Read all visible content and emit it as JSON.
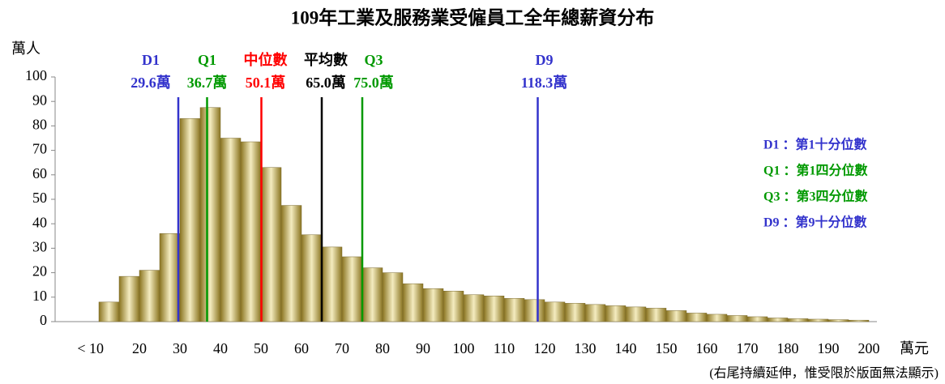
{
  "chart_data": {
    "type": "histogram",
    "title": "109年工業及服務業受僱員工全年總薪資分布",
    "y_label": "萬人",
    "x_label": "萬元",
    "footnote": "(右尾持續延伸，惟受限於版面無法顯示)",
    "bins": [
      10,
      15,
      20,
      25,
      30,
      35,
      40,
      45,
      50,
      55,
      60,
      65,
      70,
      75,
      80,
      85,
      90,
      95,
      100,
      105,
      110,
      115,
      120,
      125,
      130,
      135,
      140,
      145,
      150,
      155,
      160,
      165,
      170,
      175,
      180,
      185,
      190,
      195,
      200
    ],
    "values": [
      8,
      18.5,
      21,
      36,
      83,
      87.5,
      75,
      73.5,
      63,
      47.5,
      35.5,
      30.5,
      26.5,
      22,
      20,
      15.5,
      13.5,
      12.5,
      11,
      10.5,
      9.5,
      9,
      8,
      7.5,
      7,
      6.5,
      6,
      5.5,
      4.5,
      3.5,
      3,
      2.5,
      2,
      1.5,
      1.2,
      1,
      0.8,
      0.6
    ],
    "xlim": [
      0,
      202
    ],
    "ylim": [
      0,
      100
    ],
    "xticks": [
      {
        "value": 10,
        "label": "< 10"
      },
      20,
      30,
      40,
      50,
      60,
      70,
      80,
      90,
      100,
      110,
      120,
      130,
      140,
      150,
      160,
      170,
      180,
      190,
      200
    ],
    "yticks": [
      0,
      10,
      20,
      30,
      40,
      50,
      60,
      70,
      80,
      90,
      100
    ],
    "markers": {
      "names": [
        "D1",
        "Q1",
        "中位數",
        "平均數",
        "Q3",
        "D9"
      ],
      "values": [
        29.6,
        36.7,
        50.1,
        65.0,
        75.0,
        118.3
      ],
      "value_labels": [
        "29.6萬",
        "36.7萬",
        "50.1萬",
        "65.0萬",
        "75.0萬",
        "118.3萬"
      ],
      "colors": [
        "#3333cc",
        "#009900",
        "#ff0000",
        "#000000",
        "#009900",
        "#3333cc"
      ]
    },
    "legend": [
      {
        "label": "D1 ：第1十分位數",
        "color": "#3333cc"
      },
      {
        "label": "Q1 ：第1四分位數",
        "color": "#009900"
      },
      {
        "label": "Q3 ：第3四分位數",
        "color": "#009900"
      },
      {
        "label": "D9 ：第9十分位數",
        "color": "#3333cc"
      }
    ]
  }
}
